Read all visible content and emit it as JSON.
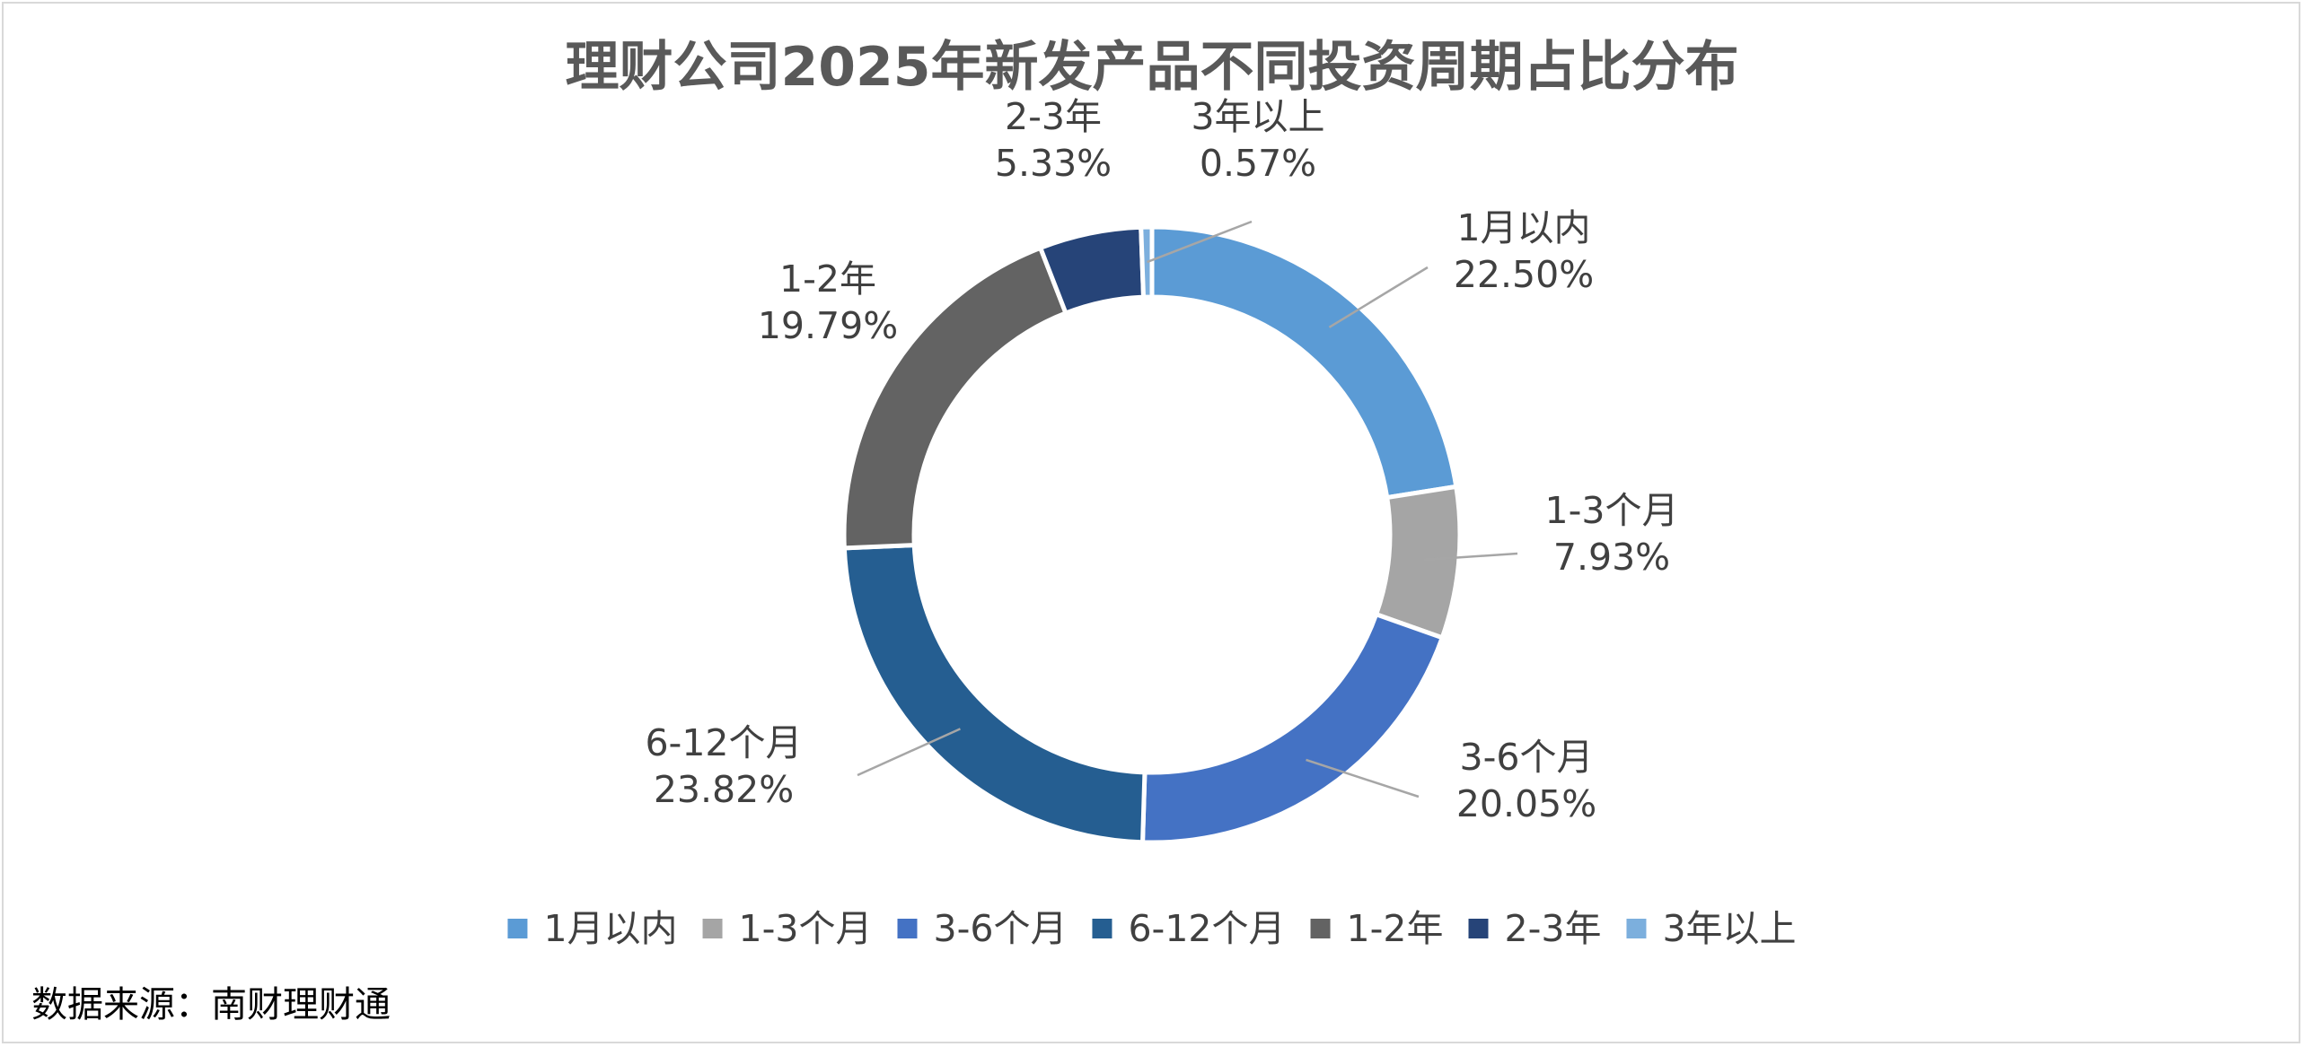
{
  "chart_data": {
    "type": "pie",
    "subtype": "doughnut",
    "title": "理财公司2025年新发产品不同投资周期占比分布",
    "categories": [
      "1月以内",
      "1-3个月",
      "3-6个月",
      "6-12个月",
      "1-2年",
      "2-3年",
      "3年以上"
    ],
    "values": [
      22.5,
      7.93,
      20.05,
      23.82,
      19.79,
      5.33,
      0.57
    ],
    "value_labels": [
      "22.50%",
      "7.93%",
      "20.05%",
      "23.82%",
      "19.79%",
      "5.33%",
      "0.57%"
    ],
    "colors": [
      "#5b9bd5",
      "#a5a5a5",
      "#4472c4",
      "#255e91",
      "#636363",
      "#264478",
      "#7cafdd"
    ],
    "legend_position": "bottom"
  },
  "source": "数据来源：南财理财通"
}
